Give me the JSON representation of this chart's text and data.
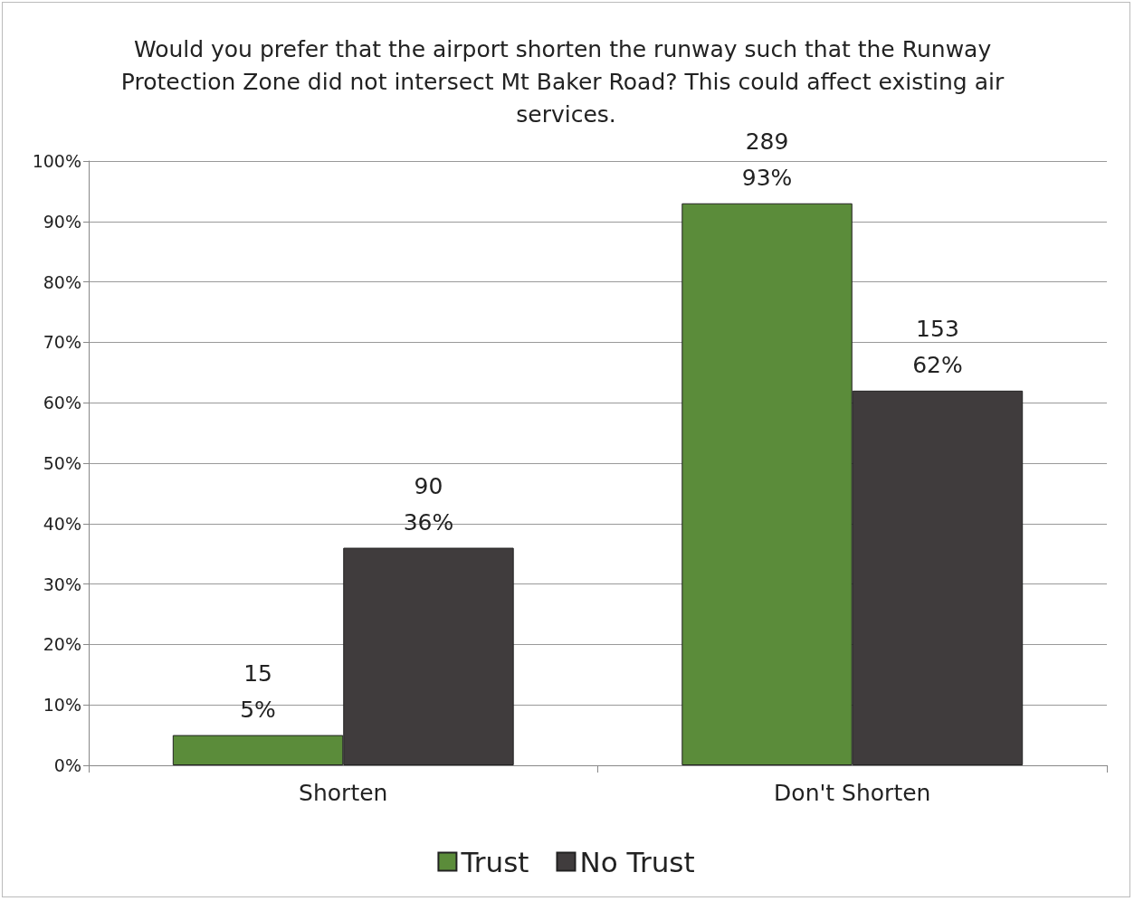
{
  "chart_data": {
    "type": "bar",
    "title": "Would you prefer that the airport shorten the runway such that the Runway Protection Zone did not intersect Mt Baker Road? This could affect existing air services.",
    "categories": [
      "Shorten",
      "Don't Shorten"
    ],
    "series": [
      {
        "name": "Trust",
        "color": "#5b8c3a",
        "values": [
          5,
          93
        ],
        "value_labels": [
          "15\n5%",
          "289\n93%"
        ]
      },
      {
        "name": "No Trust",
        "color": "#403c3d",
        "values": [
          36,
          62
        ],
        "value_labels": [
          "90\n36%",
          "153\n62%"
        ]
      }
    ],
    "ylim": [
      0,
      100
    ],
    "yticks": [
      {
        "value": 0,
        "label": "0%"
      },
      {
        "value": 10,
        "label": "10%"
      },
      {
        "value": 20,
        "label": "20%"
      },
      {
        "value": 30,
        "label": "30%"
      },
      {
        "value": 40,
        "label": "40%"
      },
      {
        "value": 50,
        "label": "50%"
      },
      {
        "value": 60,
        "label": "60%"
      },
      {
        "value": 70,
        "label": "70%"
      },
      {
        "value": 80,
        "label": "80%"
      },
      {
        "value": 90,
        "label": "90%"
      },
      {
        "value": 100,
        "label": "100%"
      }
    ],
    "grid": "y",
    "legend": "bottom"
  }
}
